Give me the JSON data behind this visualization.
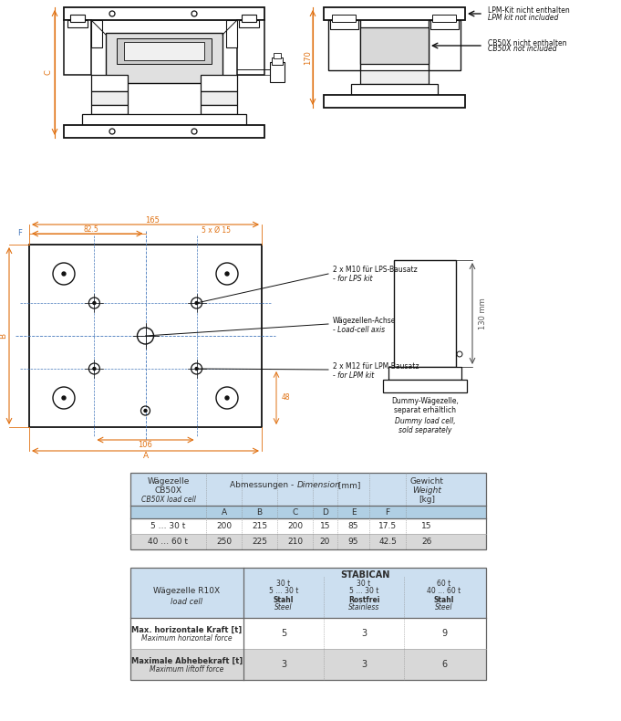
{
  "bg_color": "#ffffff",
  "light_blue": "#ccdff0",
  "mid_blue": "#b0cfe4",
  "gray_row": "#d8d8d8",
  "text_dark": "#2c2c2c",
  "dim_color": "#e07010",
  "blue_dim": "#4477bb",
  "line_color": "#333333",
  "table1": {
    "data_rows": [
      [
        "5 … 30 t",
        "200",
        "215",
        "200",
        "15",
        "85",
        "17.5",
        "15"
      ],
      [
        "40 … 60 t",
        "250",
        "225",
        "210",
        "20",
        "95",
        "42.5",
        "26"
      ]
    ]
  },
  "table2": {
    "header_row2": [
      "30 t\n5 … 30 t\nStahl\nSteel",
      "30 t\n5 … 30 t\nRostfrei\nStainless",
      "60 t\n40 … 60 t\nStahl\nSteel"
    ],
    "data_rows": [
      [
        "Max. horizontale Kraft [t]\nMaximum horizontal force",
        "5",
        "3",
        "9"
      ],
      [
        "Maximale Abhebekraft [t]\nMaximum liftoff force",
        "3",
        "3",
        "6"
      ]
    ]
  }
}
